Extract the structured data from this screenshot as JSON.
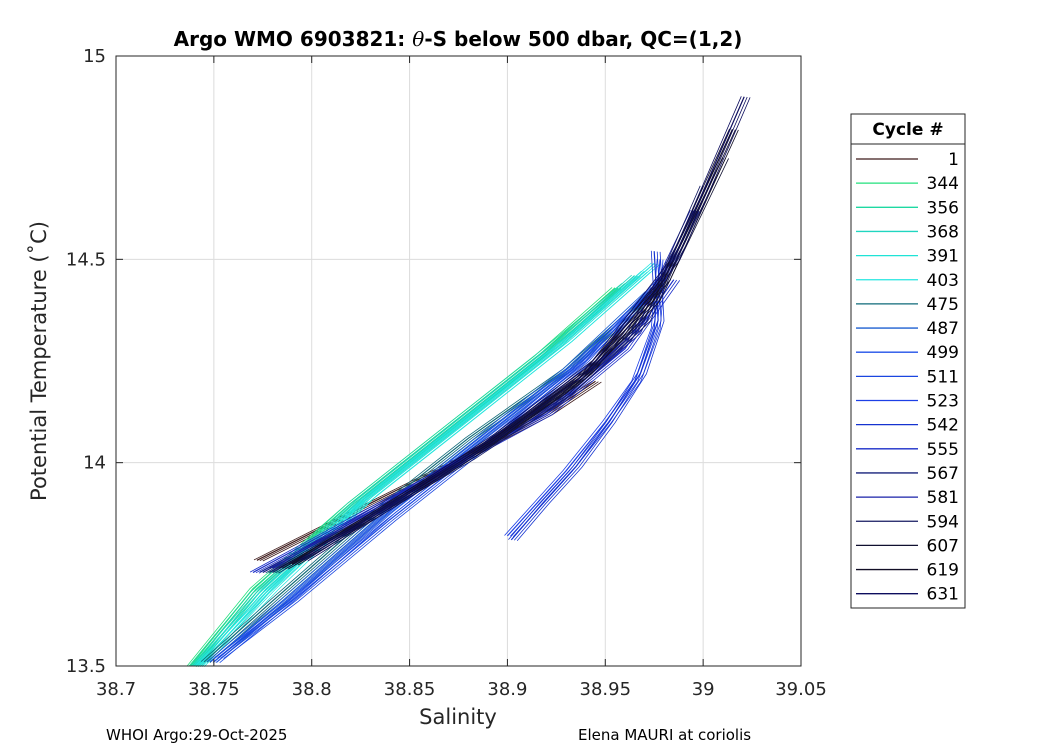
{
  "chart_data": {
    "type": "line",
    "title_prefix": "Argo WMO 6903821: ",
    "title_symbol": "θ",
    "title_suffix": "-S below 500 dbar,  QC=(1,2)",
    "xlabel": "Salinity",
    "ylabel": "Potential Temperature (˚C)",
    "xlim": [
      38.7,
      39.05
    ],
    "ylim": [
      13.5,
      15
    ],
    "xticks": [
      "38.7",
      "38.75",
      "38.8",
      "38.85",
      "38.9",
      "38.95",
      "39",
      "39.05"
    ],
    "yticks": [
      "13.5",
      "14",
      "14.5",
      "15"
    ],
    "grid": true,
    "legend_title": "Cycle #",
    "legend_position": "right",
    "series": [
      {
        "name": "1",
        "color": "#3d1a1a",
        "points": [
          [
            38.772,
            13.76
          ],
          [
            38.83,
            13.9
          ],
          [
            38.88,
            14.02
          ],
          [
            38.92,
            14.12
          ],
          [
            38.945,
            14.2
          ]
        ]
      },
      {
        "name": "344",
        "color": "#22e07c",
        "points": [
          [
            38.738,
            13.5
          ],
          [
            38.77,
            13.69
          ],
          [
            38.82,
            13.9
          ],
          [
            38.87,
            14.09
          ],
          [
            38.915,
            14.26
          ],
          [
            38.955,
            14.43
          ]
        ]
      },
      {
        "name": "356",
        "color": "#1ed9a2",
        "points": [
          [
            38.739,
            13.5
          ],
          [
            38.77,
            13.68
          ],
          [
            38.82,
            13.9
          ],
          [
            38.87,
            14.09
          ],
          [
            38.92,
            14.28
          ],
          [
            38.96,
            14.44
          ]
        ]
      },
      {
        "name": "368",
        "color": "#20d6c0",
        "points": [
          [
            38.74,
            13.5
          ],
          [
            38.775,
            13.69
          ],
          [
            38.825,
            13.91
          ],
          [
            38.875,
            14.1
          ],
          [
            38.925,
            14.29
          ],
          [
            38.965,
            14.46
          ]
        ]
      },
      {
        "name": "391",
        "color": "#1fe3d6",
        "points": [
          [
            38.741,
            13.5
          ],
          [
            38.775,
            13.68
          ],
          [
            38.825,
            13.9
          ],
          [
            38.875,
            14.09
          ],
          [
            38.93,
            14.3
          ],
          [
            38.97,
            14.47
          ]
        ]
      },
      {
        "name": "403",
        "color": "#25e6e0",
        "points": [
          [
            38.742,
            13.5
          ],
          [
            38.78,
            13.69
          ],
          [
            38.83,
            13.92
          ],
          [
            38.88,
            14.11
          ],
          [
            38.93,
            14.3
          ],
          [
            38.975,
            14.49
          ]
        ]
      },
      {
        "name": "475",
        "color": "#0f6a78",
        "points": [
          [
            38.745,
            13.51
          ],
          [
            38.78,
            13.66
          ],
          [
            38.83,
            13.87
          ],
          [
            38.88,
            14.06
          ],
          [
            38.93,
            14.23
          ],
          [
            38.97,
            14.4
          ]
        ]
      },
      {
        "name": "487",
        "color": "#1c5fd0",
        "points": [
          [
            38.748,
            13.51
          ],
          [
            38.785,
            13.66
          ],
          [
            38.835,
            13.87
          ],
          [
            38.885,
            14.06
          ],
          [
            38.93,
            14.23
          ],
          [
            38.972,
            14.42
          ]
        ]
      },
      {
        "name": "499",
        "color": "#2050e8",
        "points": [
          [
            38.75,
            13.51
          ],
          [
            38.79,
            13.67
          ],
          [
            38.84,
            13.88
          ],
          [
            38.89,
            14.07
          ],
          [
            38.935,
            14.24
          ],
          [
            38.975,
            14.43
          ]
        ]
      },
      {
        "name": "511",
        "color": "#1a46e0",
        "points": [
          [
            38.752,
            13.52
          ],
          [
            38.79,
            13.66
          ],
          [
            38.84,
            13.86
          ],
          [
            38.89,
            14.05
          ],
          [
            38.94,
            14.25
          ],
          [
            38.978,
            14.45
          ]
        ]
      },
      {
        "name": "523",
        "color": "#1d3fe6",
        "points": [
          [
            38.9,
            13.82
          ],
          [
            38.915,
            13.9
          ],
          [
            38.93,
            13.98
          ],
          [
            38.95,
            14.1
          ],
          [
            38.965,
            14.2
          ],
          [
            38.975,
            14.33
          ],
          [
            38.978,
            14.5
          ]
        ]
      },
      {
        "name": "542",
        "color": "#1533d0",
        "points": [
          [
            38.902,
            13.81
          ],
          [
            38.918,
            13.9
          ],
          [
            38.935,
            13.99
          ],
          [
            38.952,
            14.1
          ],
          [
            38.968,
            14.22
          ],
          [
            38.977,
            14.35
          ],
          [
            38.975,
            14.52
          ]
        ]
      },
      {
        "name": "555",
        "color": "#1a2dc8",
        "points": [
          [
            38.77,
            13.73
          ],
          [
            38.82,
            13.86
          ],
          [
            38.87,
            13.99
          ],
          [
            38.92,
            14.12
          ],
          [
            38.96,
            14.28
          ],
          [
            38.985,
            14.45
          ]
        ]
      },
      {
        "name": "567",
        "color": "#16207a",
        "points": [
          [
            38.775,
            13.73
          ],
          [
            38.825,
            13.86
          ],
          [
            38.875,
            14.0
          ],
          [
            38.925,
            14.15
          ],
          [
            38.96,
            14.3
          ],
          [
            38.99,
            14.55
          ]
        ]
      },
      {
        "name": "581",
        "color": "#1820a8",
        "points": [
          [
            38.78,
            13.74
          ],
          [
            38.83,
            13.88
          ],
          [
            38.88,
            14.02
          ],
          [
            38.93,
            14.17
          ],
          [
            38.965,
            14.32
          ],
          [
            38.995,
            14.62
          ]
        ]
      },
      {
        "name": "594",
        "color": "#141a60",
        "points": [
          [
            38.78,
            13.73
          ],
          [
            38.83,
            13.87
          ],
          [
            38.88,
            14.01
          ],
          [
            38.93,
            14.17
          ],
          [
            38.97,
            14.35
          ],
          [
            39.0,
            14.68
          ]
        ]
      },
      {
        "name": "607",
        "color": "#101030",
        "points": [
          [
            38.785,
            13.74
          ],
          [
            38.835,
            13.88
          ],
          [
            38.885,
            14.03
          ],
          [
            38.935,
            14.2
          ],
          [
            38.975,
            14.4
          ],
          [
            39.01,
            14.75
          ]
        ]
      },
      {
        "name": "619",
        "color": "#120f26",
        "points": [
          [
            38.79,
            13.75
          ],
          [
            38.84,
            13.9
          ],
          [
            38.89,
            14.05
          ],
          [
            38.94,
            14.22
          ],
          [
            38.98,
            14.45
          ],
          [
            39.015,
            14.82
          ]
        ]
      },
      {
        "name": "631",
        "color": "#0d0d5e",
        "points": [
          [
            38.795,
            13.76
          ],
          [
            38.845,
            13.91
          ],
          [
            38.895,
            14.07
          ],
          [
            38.945,
            14.25
          ],
          [
            38.985,
            14.5
          ],
          [
            39.021,
            14.9
          ]
        ]
      }
    ]
  },
  "footer": {
    "left": "WHOI Argo:29-Oct-2025",
    "right": "Elena MAURI at coriolis"
  }
}
